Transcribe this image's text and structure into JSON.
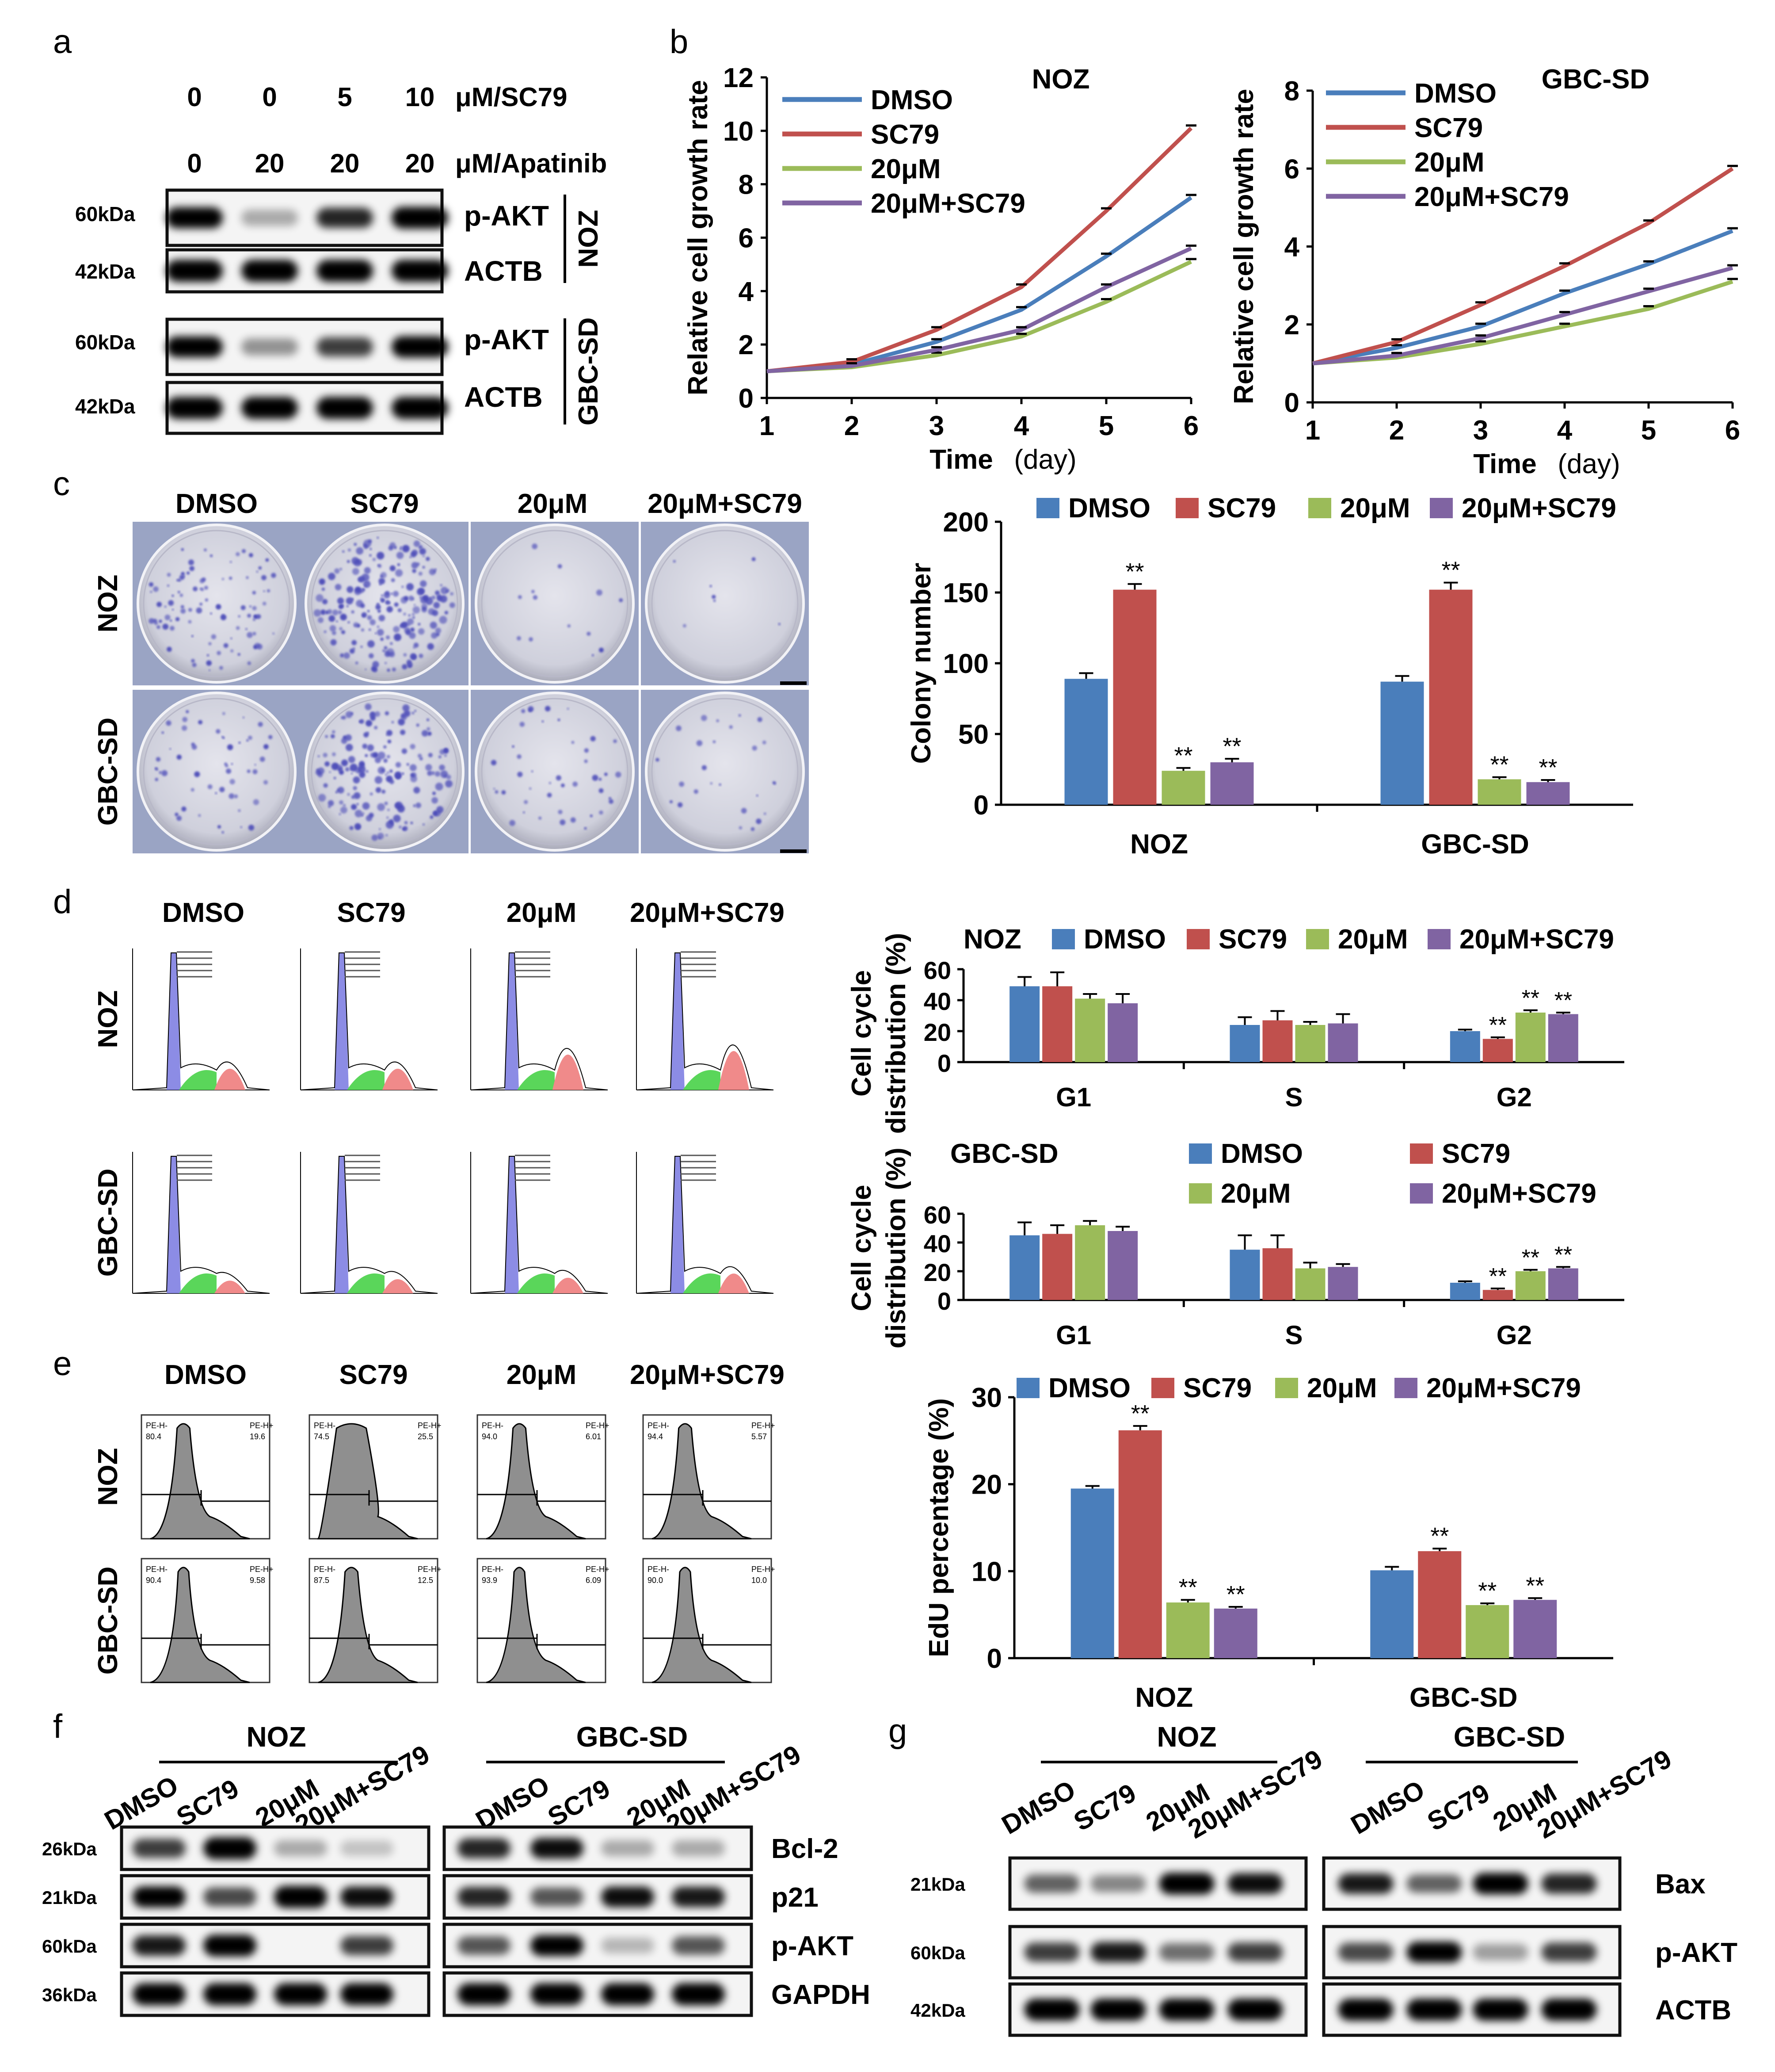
{
  "panel_letters": {
    "a": "a",
    "b": "b",
    "c": "c",
    "d": "d",
    "e": "e",
    "f": "f",
    "g": "g"
  },
  "colors": {
    "dmso": "#4a7ebb",
    "sc79": "#c0504d",
    "t20": "#9bbb59",
    "combo": "#8064a2",
    "crystal": "#4a4ab8",
    "dish": "#dcdce6",
    "g1": "#7878e0",
    "s": "#5ad65a",
    "g2": "#f08a8a",
    "hist": "#8f8f8f"
  },
  "panel_a": {
    "sc79_values": [
      "0",
      "0",
      "5",
      "10"
    ],
    "sc79_unit": "μM/SC79",
    "apatinib_values": [
      "0",
      "20",
      "20",
      "20"
    ],
    "apatinib_unit": "μM/Apatinib",
    "kda_60": "60kDa",
    "kda_42": "42kDa",
    "pakt": "p-AKT",
    "actb": "ACTB",
    "noz": "NOZ",
    "gbcsd": "GBC-SD"
  },
  "panel_b_text": {
    "noz": "NOZ",
    "gbcsd": "GBC-SD"
  },
  "panel_c": {
    "groups": [
      "DMSO",
      "SC79",
      "20μM",
      "20μM+SC79"
    ],
    "rows": [
      "NOZ",
      "GBC-SD"
    ]
  },
  "panel_d": {
    "groups": [
      "DMSO",
      "SC79",
      "20μM",
      "20μM+SC79"
    ],
    "rows": [
      "NOZ",
      "GBC-SD"
    ]
  },
  "panel_e": {
    "groups": [
      "DMSO",
      "SC79",
      "20μM",
      "20μM+SC79"
    ],
    "rows": [
      "NOZ",
      "GBC-SD"
    ],
    "hist_top": [
      "80.4",
      "19.6",
      "74.5",
      "25.5",
      "94.0",
      "6.01",
      "94.4",
      "5.57"
    ],
    "hist_bottom": [
      "90.4",
      "9.58",
      "87.5",
      "12.5",
      "93.9",
      "6.09",
      "90.0",
      "10.0"
    ],
    "gate_minus": "PE-H-",
    "gate_plus": "PE-H+"
  },
  "panel_f": {
    "lanes": [
      "DMSO",
      "SC79",
      "20μM",
      "20μM+SC79"
    ],
    "cells": [
      "NOZ",
      "GBC-SD"
    ],
    "kdas": [
      "26kDa",
      "21kDa",
      "60kDa",
      "36kDa"
    ],
    "proteins": [
      "Bcl-2",
      "p21",
      "p-AKT",
      "GAPDH"
    ]
  },
  "panel_g": {
    "lanes": [
      "DMSO",
      "SC79",
      "20μM",
      "20μM+SC79"
    ],
    "cells": [
      "NOZ",
      "GBC-SD"
    ],
    "kdas": [
      "21kDa",
      "60kDa",
      "42kDa"
    ],
    "proteins": [
      "Bax",
      "p-AKT",
      "ACTB"
    ]
  },
  "chart_data": [
    {
      "id": "b-noz",
      "type": "line",
      "title": "NOZ",
      "xlabel": "Time",
      "xlabel_unit": "(day)",
      "ylabel": "Relative cell growth rate",
      "x": [
        1,
        2,
        3,
        4,
        5,
        6
      ],
      "xlim": [
        1,
        6
      ],
      "ylim": [
        0,
        12
      ],
      "yticks": [
        0,
        2,
        4,
        6,
        8,
        10,
        12
      ],
      "series": [
        {
          "name": "DMSO",
          "values": [
            1,
            1.25,
            2.1,
            3.3,
            5.3,
            7.5
          ]
        },
        {
          "name": "SC79",
          "values": [
            1,
            1.35,
            2.55,
            4.15,
            7.0,
            10.1
          ]
        },
        {
          "name": "20μM",
          "values": [
            1,
            1.15,
            1.6,
            2.3,
            3.6,
            5.1
          ]
        },
        {
          "name": "20μM+SC79",
          "values": [
            1,
            1.2,
            1.8,
            2.55,
            4.15,
            5.6
          ]
        }
      ],
      "legend": "top-left"
    },
    {
      "id": "b-gbc",
      "type": "line",
      "title": "GBC-SD",
      "xlabel": "Time",
      "xlabel_unit": "(day)",
      "ylabel": "Relative cell growth rate",
      "x": [
        1,
        2,
        3,
        4,
        5,
        6
      ],
      "xlim": [
        1,
        6
      ],
      "ylim": [
        0,
        8
      ],
      "yticks": [
        0,
        2,
        4,
        6,
        8
      ],
      "series": [
        {
          "name": "DMSO",
          "values": [
            1,
            1.4,
            1.95,
            2.8,
            3.55,
            4.4
          ]
        },
        {
          "name": "SC79",
          "values": [
            1,
            1.55,
            2.5,
            3.5,
            4.6,
            6.0
          ]
        },
        {
          "name": "20μM",
          "values": [
            1,
            1.15,
            1.5,
            1.95,
            2.4,
            3.1
          ]
        },
        {
          "name": "20μM+SC79",
          "values": [
            1,
            1.2,
            1.65,
            2.25,
            2.85,
            3.45
          ]
        }
      ],
      "legend": "top-left"
    },
    {
      "id": "c-bar",
      "type": "bar",
      "ylabel": "Colony number",
      "categories": [
        "NOZ",
        "GBC-SD"
      ],
      "ylim": [
        0,
        200
      ],
      "yticks": [
        0,
        50,
        100,
        150,
        200
      ],
      "series": [
        {
          "name": "DMSO",
          "values": [
            89,
            87
          ],
          "errors": [
            4,
            4
          ],
          "sig": [
            "",
            ""
          ]
        },
        {
          "name": "SC79",
          "values": [
            152,
            152
          ],
          "errors": [
            4,
            5
          ],
          "sig": [
            "**",
            "**"
          ]
        },
        {
          "name": "20μM",
          "values": [
            24,
            18
          ],
          "errors": [
            2,
            1.5
          ],
          "sig": [
            "**",
            "**"
          ]
        },
        {
          "name": "20μM+SC79",
          "values": [
            30,
            16
          ],
          "errors": [
            2.5,
            1.5
          ],
          "sig": [
            "**",
            "**"
          ]
        }
      ],
      "legend": "top"
    },
    {
      "id": "d-noz",
      "type": "bar",
      "title": "NOZ",
      "ylabel": "Cell cycle distribution (%)",
      "categories": [
        "G1",
        "S",
        "G2"
      ],
      "ylim": [
        0,
        60
      ],
      "yticks": [
        0,
        20,
        40,
        60
      ],
      "series": [
        {
          "name": "DMSO",
          "values": [
            49,
            24,
            20
          ],
          "errors": [
            6,
            5,
            1
          ],
          "sig": [
            "",
            "",
            ""
          ]
        },
        {
          "name": "SC79",
          "values": [
            49,
            27,
            15
          ],
          "errors": [
            9,
            6,
            1
          ],
          "sig": [
            "",
            "",
            "**"
          ]
        },
        {
          "name": "20μM",
          "values": [
            41,
            24,
            32
          ],
          "errors": [
            3,
            2,
            1.5
          ],
          "sig": [
            "",
            "",
            "**"
          ]
        },
        {
          "name": "20μM+SC79",
          "values": [
            38,
            25,
            31
          ],
          "errors": [
            6,
            6,
            1
          ],
          "sig": [
            "",
            "",
            "**"
          ]
        }
      ],
      "legend": "top"
    },
    {
      "id": "d-gbc",
      "type": "bar",
      "title": "GBC-SD",
      "ylabel": "Cell cycle distribution (%)",
      "categories": [
        "G1",
        "S",
        "G2"
      ],
      "ylim": [
        0,
        60
      ],
      "yticks": [
        0,
        20,
        40,
        60
      ],
      "series": [
        {
          "name": "DMSO",
          "values": [
            45,
            35,
            12
          ],
          "errors": [
            9,
            10,
            1
          ],
          "sig": [
            "",
            "",
            ""
          ]
        },
        {
          "name": "SC79",
          "values": [
            46,
            36,
            7
          ],
          "errors": [
            6,
            9,
            1
          ],
          "sig": [
            "",
            "",
            "**"
          ]
        },
        {
          "name": "20μM",
          "values": [
            52,
            22,
            20
          ],
          "errors": [
            3,
            4,
            1
          ],
          "sig": [
            "",
            "",
            "**"
          ]
        },
        {
          "name": "20μM+SC79",
          "values": [
            48,
            23,
            22
          ],
          "errors": [
            3,
            2,
            1
          ],
          "sig": [
            "",
            "",
            "**"
          ]
        }
      ],
      "legend": "top"
    },
    {
      "id": "e-bar",
      "type": "bar",
      "ylabel": "EdU percentage (%)",
      "categories": [
        "NOZ",
        "GBC-SD"
      ],
      "ylim": [
        0,
        30
      ],
      "yticks": [
        0,
        10,
        20,
        30
      ],
      "series": [
        {
          "name": "DMSO",
          "values": [
            19.5,
            10.1
          ],
          "errors": [
            0.3,
            0.4
          ],
          "sig": [
            "",
            ""
          ]
        },
        {
          "name": "SC79",
          "values": [
            26.2,
            12.3
          ],
          "errors": [
            0.5,
            0.3
          ],
          "sig": [
            "**",
            "**"
          ]
        },
        {
          "name": "20μM",
          "values": [
            6.4,
            6.1
          ],
          "errors": [
            0.3,
            0.2
          ],
          "sig": [
            "**",
            "**"
          ]
        },
        {
          "name": "20μM+SC79",
          "values": [
            5.7,
            6.7
          ],
          "errors": [
            0.2,
            0.2
          ],
          "sig": [
            "**",
            "**"
          ]
        }
      ],
      "legend": "top"
    }
  ]
}
